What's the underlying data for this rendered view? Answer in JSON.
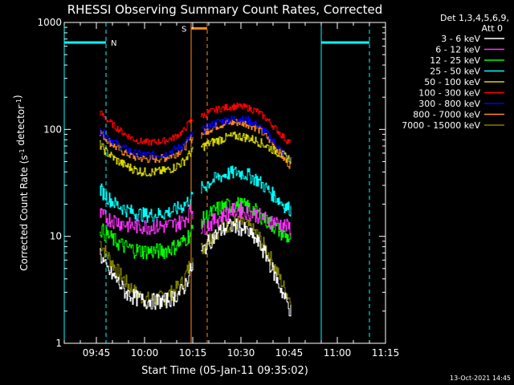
{
  "chart_data": {
    "type": "line",
    "title": "RHESSI Observing Summary Count Rates, Corrected",
    "ylabel": "Corrected Count Rate (s⁻¹ detector⁻¹)",
    "xlabel": "Start Time (05-Jan-11 09:35:02)",
    "yscale": "log",
    "ylim": [
      1,
      1000
    ],
    "xlim_min": [
      0,
      100
    ],
    "x_tick_labels": [
      "09:45",
      "10:00",
      "10:15",
      "10:30",
      "10:45",
      "11:00",
      "11:15"
    ],
    "x_tick_min": [
      10,
      25,
      40,
      55,
      70,
      85,
      100
    ],
    "y_tick_labels": [
      "1",
      "10",
      "100",
      "1000"
    ],
    "y_tick_values": [
      1,
      10,
      100,
      1000
    ],
    "legend_header": [
      "Det 1,3,4,5,6,9,",
      "Att 0"
    ],
    "legend_position": "right",
    "timestamp": "13-Oct-2021 14:45",
    "annotations": {
      "night": {
        "label": "N",
        "intervals": [
          [
            0,
            13
          ],
          [
            80,
            95
          ]
        ],
        "level": 650,
        "color": "#00ffff"
      },
      "saa": {
        "label": "S",
        "interval": [
          39.5,
          44.5
        ],
        "level": 880,
        "color": "#ff8c1a"
      }
    },
    "data_gaps": [
      [
        40,
        42.5
      ]
    ],
    "series": [
      {
        "name": "3 - 6 keV",
        "color": "#ffffff",
        "x": [
          11,
          13,
          16,
          19,
          22,
          25,
          28,
          31,
          34,
          37,
          39.5,
          42.5,
          45,
          48,
          51,
          54,
          57,
          60,
          63,
          66,
          69,
          70.5
        ],
        "y": [
          7,
          5,
          4,
          3,
          2.7,
          2.5,
          2.5,
          2.5,
          2.7,
          3.2,
          5,
          7,
          9,
          11,
          12.5,
          12.5,
          11,
          9,
          6.5,
          4,
          2.5,
          2
        ]
      },
      {
        "name": "6 - 12 keV",
        "color": "#ff33ff",
        "x": [
          11,
          13,
          16,
          19,
          22,
          25,
          28,
          31,
          34,
          37,
          39.5,
          42.5,
          45,
          48,
          51,
          54,
          57,
          60,
          63,
          66,
          69,
          70.5
        ],
        "y": [
          16,
          15,
          14,
          13,
          12.5,
          12.5,
          12.5,
          12.5,
          13,
          14,
          18,
          12,
          13,
          15,
          17,
          18,
          17,
          16,
          14.5,
          13.5,
          12.5,
          12
        ]
      },
      {
        "name": "12 - 25 keV",
        "color": "#00ff00",
        "x": [
          11,
          13,
          16,
          19,
          22,
          25,
          28,
          31,
          34,
          37,
          39.5,
          42.5,
          45,
          48,
          51,
          54,
          57,
          60,
          63,
          66,
          69,
          70.5
        ],
        "y": [
          12,
          10.5,
          9,
          8,
          7.5,
          7.3,
          7.3,
          7.4,
          8,
          9,
          11,
          14,
          16,
          18.5,
          19.5,
          20,
          19,
          17,
          14,
          12,
          10,
          9.5
        ]
      },
      {
        "name": "25 - 50 keV",
        "color": "#00ffff",
        "x": [
          11,
          13,
          16,
          19,
          22,
          25,
          28,
          31,
          34,
          37,
          39.5,
          42.5,
          45,
          48,
          51,
          54,
          57,
          60,
          63,
          66,
          69,
          70.5
        ],
        "y": [
          28,
          24,
          20,
          18,
          16.5,
          16,
          16,
          16.5,
          17.5,
          19.5,
          23,
          28,
          32,
          36,
          39,
          40,
          38,
          34,
          28,
          23,
          19,
          18
        ]
      },
      {
        "name": "50 - 100 keV",
        "color": "#d8d800",
        "x": [
          11,
          13,
          16,
          19,
          22,
          25,
          28,
          31,
          34,
          37,
          39.5,
          42.5,
          45,
          48,
          51,
          54,
          57,
          60,
          63,
          66,
          69,
          70.5
        ],
        "y": [
          72,
          62,
          52,
          46,
          42,
          40,
          40,
          41,
          44,
          50,
          62,
          68,
          74,
          80,
          85,
          87,
          84,
          78,
          70,
          62,
          55,
          52
        ]
      },
      {
        "name": "100 - 300 keV",
        "color": "#ff0000",
        "x": [
          11,
          13,
          16,
          19,
          22,
          25,
          28,
          31,
          34,
          37,
          39.5,
          42.5,
          45,
          48,
          51,
          54,
          57,
          60,
          63,
          66,
          69,
          70.5
        ],
        "y": [
          145,
          125,
          105,
          90,
          80,
          76,
          76,
          78,
          84,
          96,
          125,
          132,
          145,
          155,
          162,
          165,
          160,
          148,
          125,
          100,
          80,
          75
        ]
      },
      {
        "name": "300 - 800 keV",
        "color": "#0000ff",
        "x": [
          11,
          13,
          16,
          19,
          22,
          25,
          28,
          31,
          34,
          37,
          39.5,
          42.5,
          45,
          48,
          51,
          54,
          57,
          60,
          63,
          66,
          69,
          70.5
        ],
        "y": [
          100,
          88,
          74,
          66,
          60,
          58,
          58,
          59,
          64,
          72,
          88,
          98,
          108,
          118,
          124,
          126,
          122,
          110,
          92,
          72,
          56,
          52
        ]
      },
      {
        "name": "800 - 7000 keV",
        "color": "#ff8c1a",
        "x": [
          11,
          13,
          16,
          19,
          22,
          25,
          28,
          31,
          34,
          37,
          39.5,
          42.5,
          45,
          48,
          51,
          54,
          57,
          60,
          63,
          66,
          69,
          70.5
        ],
        "y": [
          95,
          82,
          68,
          60,
          55,
          53,
          53,
          54,
          58,
          66,
          82,
          90,
          100,
          110,
          115,
          117,
          113,
          103,
          85,
          66,
          50,
          46
        ]
      },
      {
        "name": "7000 - 15000 keV",
        "color": "#808000",
        "x": [
          11,
          13,
          16,
          19,
          22,
          25,
          28,
          31,
          34,
          37,
          39.5,
          42.5,
          45,
          48,
          51,
          54,
          57,
          60,
          63,
          66,
          69,
          70.5
        ],
        "y": [
          9,
          7,
          5,
          3.8,
          3,
          2.6,
          2.6,
          2.7,
          3.1,
          3.8,
          6,
          7.5,
          9.5,
          11.5,
          13,
          13.5,
          12.5,
          10.5,
          7.5,
          4.8,
          3,
          2.5
        ]
      }
    ]
  }
}
